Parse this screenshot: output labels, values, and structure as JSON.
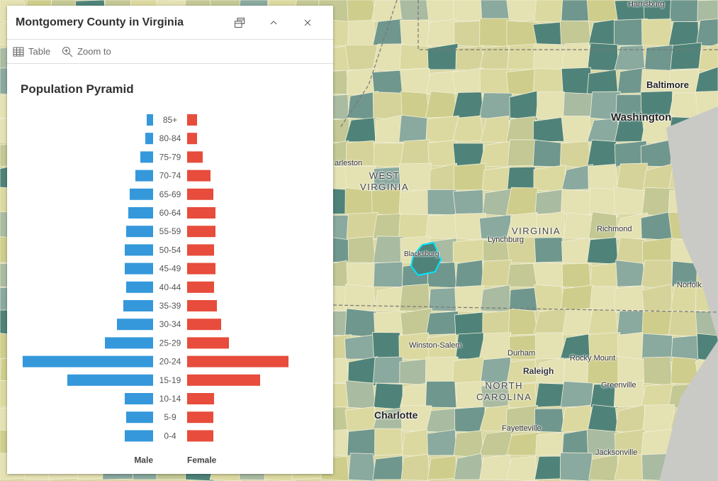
{
  "popup": {
    "title": "Montgomery County in Virginia",
    "actions": {
      "table": "Table",
      "zoom_to": "Zoom to"
    },
    "icons": [
      "dock-icon",
      "collapse-icon",
      "close-icon",
      "table-icon",
      "zoom-in-icon"
    ]
  },
  "chart_data": {
    "type": "bar",
    "title": "Population Pyramid",
    "orientation": "horizontal-pyramid",
    "categories": [
      "85+",
      "80-84",
      "75-79",
      "70-74",
      "65-69",
      "60-64",
      "55-59",
      "50-54",
      "45-49",
      "40-44",
      "35-39",
      "30-34",
      "25-29",
      "20-24",
      "15-19",
      "10-14",
      "5-9",
      "0-4"
    ],
    "series": [
      {
        "name": "Male",
        "color": "#3498db",
        "values": [
          9,
          11,
          18,
          25,
          33,
          35,
          38,
          40,
          40,
          38,
          42,
          51,
          68,
          184,
          121,
          40,
          38,
          40
        ]
      },
      {
        "name": "Female",
        "color": "#e74c3c",
        "values": [
          14,
          14,
          22,
          33,
          37,
          40,
          40,
          38,
          40,
          38,
          42,
          48,
          59,
          143,
          103,
          38,
          37,
          37
        ]
      }
    ],
    "note_units": "relative"
  },
  "map": {
    "labels": {
      "harrisburg": "Harrisburg",
      "baltimore": "Baltimore",
      "washington": "Washington",
      "charleston": "arleston",
      "west_virginia": "WEST\nVIRGINIA",
      "virginia": "VIRGINIA",
      "richmond": "Richmond",
      "lynchburg": "Lynchburg",
      "blacksburg": "Blacksburg",
      "norfolk": "Norfolk",
      "winston_salem": "Winston-Salem",
      "durham": "Durham",
      "raleigh": "Raleigh",
      "rocky_mount": "Rocky Mount",
      "greenville": "Greenville",
      "north_carolina": "NORTH\nCAROLINA",
      "charlotte": "Charlotte",
      "fayetteville": "Fayetteville",
      "jacksonville": "Jacksonville"
    },
    "highlight_color": "#00e5ff"
  }
}
